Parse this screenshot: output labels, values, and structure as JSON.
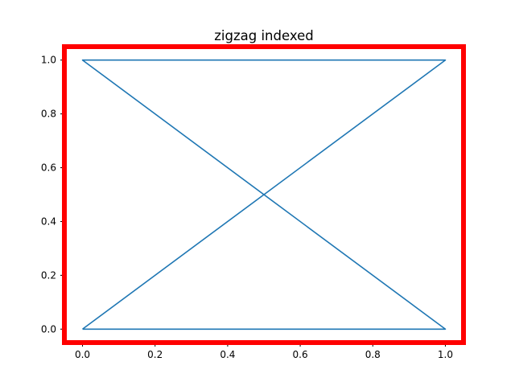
{
  "chart_data": {
    "type": "line",
    "title": "zigzag indexed",
    "xlabel": "",
    "ylabel": "",
    "xlim": [
      -0.05,
      1.05
    ],
    "ylim": [
      -0.05,
      1.05
    ],
    "x_ticks": [
      0.0,
      0.2,
      0.4,
      0.6,
      0.8,
      1.0
    ],
    "y_ticks": [
      0.0,
      0.2,
      0.4,
      0.6,
      0.8,
      1.0
    ],
    "x_tick_labels": [
      "0.0",
      "0.2",
      "0.4",
      "0.6",
      "0.8",
      "1.0"
    ],
    "y_tick_labels": [
      "0.0",
      "0.2",
      "0.4",
      "0.6",
      "0.8",
      "1.0"
    ],
    "grid": false,
    "legend": "none",
    "series": [
      {
        "x": [
          0,
          1,
          0,
          1,
          0
        ],
        "y": [
          0,
          1,
          1,
          0,
          0
        ],
        "color": "#1f77b4"
      }
    ],
    "frame_highlight_color": "#ff0000"
  }
}
